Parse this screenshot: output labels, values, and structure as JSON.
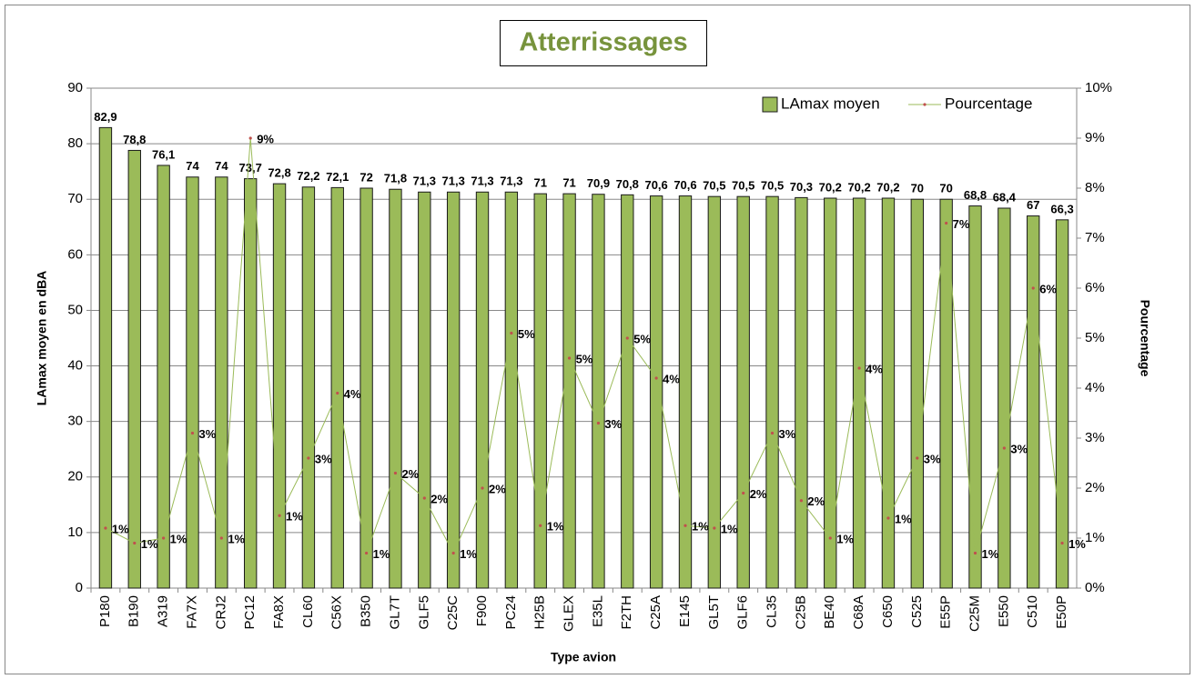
{
  "chart_data": {
    "type": "bar_line",
    "title": "Atterrissages",
    "x_label": "Type avion",
    "y_label": "LAmax moyen en dBA",
    "y2_label": "Pourcentage",
    "categories": [
      "P180",
      "B190",
      "A319",
      "FA7X",
      "CRJ2",
      "PC12",
      "FA8X",
      "CL60",
      "C56X",
      "B350",
      "GL7T",
      "GLF5",
      "C25C",
      "F900",
      "PC24",
      "H25B",
      "GLEX",
      "E35L",
      "F2TH",
      "C25A",
      "E145",
      "GL5T",
      "GLF6",
      "CL35",
      "C25B",
      "BE40",
      "C68A",
      "C650",
      "C525",
      "E55P",
      "C25M",
      "E550",
      "C510",
      "E50P"
    ],
    "series": [
      {
        "name": "LAmax moyen",
        "type": "bar",
        "color": "#9bbb59",
        "values": [
          82.9,
          78.8,
          76.1,
          74,
          74,
          73.7,
          72.8,
          72.2,
          72.1,
          72,
          71.8,
          71.3,
          71.3,
          71.3,
          71.3,
          71,
          71,
          70.9,
          70.8,
          70.6,
          70.6,
          70.5,
          70.5,
          70.5,
          70.3,
          70.2,
          70.2,
          70.2,
          70,
          70,
          68.8,
          68.4,
          67,
          66.3
        ],
        "value_labels": [
          "82,9",
          "78,8",
          "76,1",
          "74",
          "74",
          "73,7",
          "72,8",
          "72,2",
          "72,1",
          "72",
          "71,8",
          "71,3",
          "71,3",
          "71,3",
          "71,3",
          "71",
          "71",
          "70,9",
          "70,8",
          "70,6",
          "70,6",
          "70,5",
          "70,5",
          "70,5",
          "70,3",
          "70,2",
          "70,2",
          "70,2",
          "70",
          "70",
          "68,8",
          "68,4",
          "67",
          "66,3"
        ]
      },
      {
        "name": "Pourcentage",
        "type": "line",
        "axis": "y2",
        "color": "#9bbb59",
        "marker_color": "#c0504d",
        "values": [
          1.2,
          0.9,
          1.0,
          3.1,
          1.0,
          9.0,
          1.45,
          2.6,
          3.9,
          0.7,
          2.3,
          1.8,
          0.7,
          2.0,
          5.1,
          1.25,
          4.6,
          3.3,
          5.0,
          4.2,
          1.25,
          1.2,
          1.9,
          3.1,
          1.75,
          1.0,
          4.4,
          1.4,
          2.6,
          7.3,
          0.7,
          2.8,
          6.0,
          0.9
        ],
        "value_labels": [
          "1%",
          "1%",
          "1%",
          "3%",
          "1%",
          "9%",
          "1%",
          "3%",
          "4%",
          "1%",
          "2%",
          "2%",
          "1%",
          "2%",
          "5%",
          "1%",
          "5%",
          "3%",
          "5%",
          "4%",
          "1%",
          "1%",
          "2%",
          "3%",
          "2%",
          "1%",
          "4%",
          "1%",
          "3%",
          "7%",
          "1%",
          "3%",
          "6%",
          "1%"
        ]
      }
    ],
    "ylim": [
      0,
      90
    ],
    "yticks": [
      0,
      10,
      20,
      30,
      40,
      50,
      60,
      70,
      80,
      90
    ],
    "y2lim": [
      0,
      10
    ],
    "y2ticks": [
      {
        "value": 0,
        "label": "0%"
      },
      {
        "value": 1,
        "label": "1%"
      },
      {
        "value": 2,
        "label": "2%"
      },
      {
        "value": 3,
        "label": "3%"
      },
      {
        "value": 4,
        "label": "4%"
      },
      {
        "value": 5,
        "label": "5%"
      },
      {
        "value": 6,
        "label": "6%"
      },
      {
        "value": 7,
        "label": "7%"
      },
      {
        "value": 8,
        "label": "8%"
      },
      {
        "value": 9,
        "label": "9%"
      },
      {
        "value": 10,
        "label": "10%"
      }
    ],
    "grid": true,
    "legend": "top-right"
  }
}
